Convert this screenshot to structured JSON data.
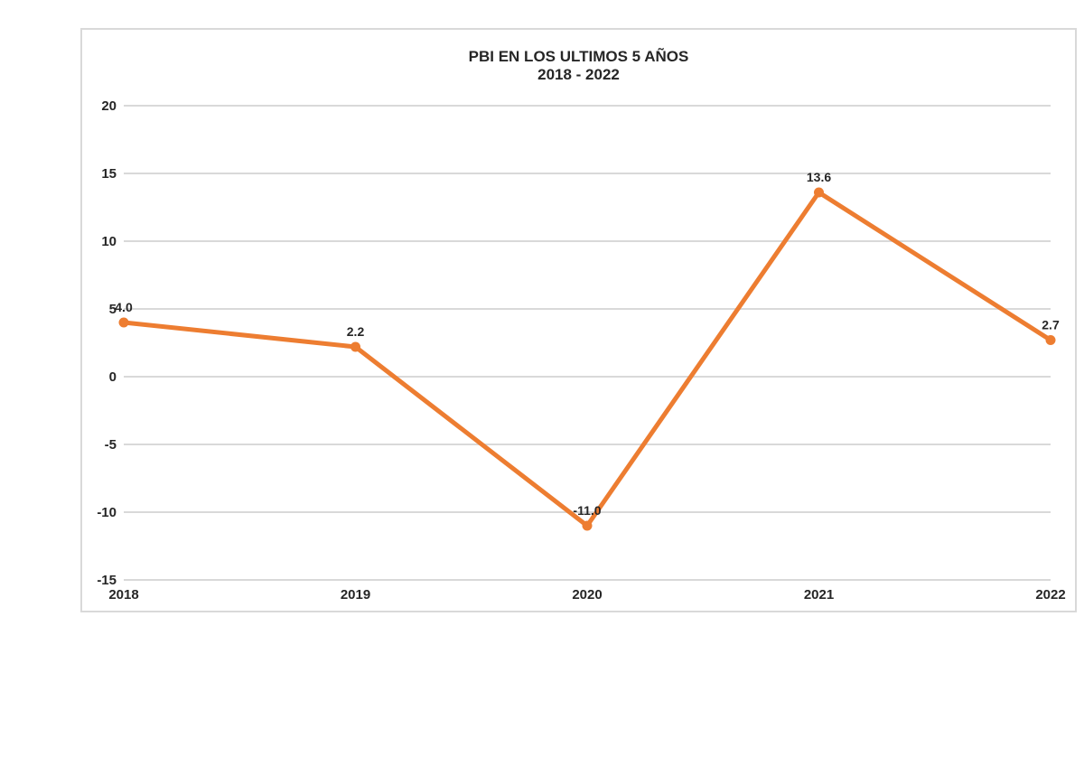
{
  "chart": {
    "title_line1": "PBI EN LOS ULTIMOS 5 AÑOS",
    "title_line2": "2018 - 2022"
  },
  "chart_data": {
    "type": "line",
    "title": "PBI EN LOS ULTIMOS 5 AÑOS 2018 - 2022",
    "categories": [
      "2018",
      "2019",
      "2020",
      "2021",
      "2022"
    ],
    "values": [
      4.0,
      2.2,
      -11.0,
      13.6,
      2.7
    ],
    "data_labels": [
      "4.0",
      "2.2",
      "-11.0",
      "13.6",
      "2.7"
    ],
    "yticks": [
      20,
      15,
      10,
      5,
      0,
      -5,
      -10,
      -15
    ],
    "ylim": [
      -15,
      20
    ],
    "xlabel": "",
    "ylabel": "",
    "grid": true,
    "legend": "none",
    "data_label_position": "above",
    "colors": {
      "line": "#ED7D31",
      "marker": "#ED7D31",
      "gridline": "#D9D9D9",
      "frame_border": "#D9D9D9",
      "text": "#262626",
      "background": "#FFFFFF"
    }
  }
}
